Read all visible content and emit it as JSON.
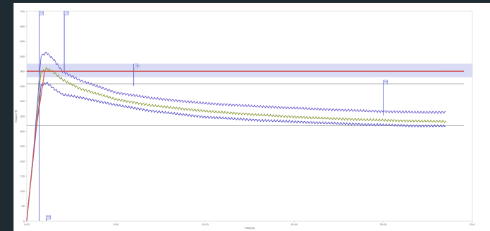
{
  "chart_data": {
    "type": "line",
    "xlabel": "Time(hr)",
    "ylabel": "Tempe(°F)",
    "xlim": [
      0,
      25
    ],
    "ylim": [
      0,
      700
    ],
    "x_ticks": [
      "0:00",
      "5:00",
      "10:00",
      "15:00",
      "20:00",
      "25:0"
    ],
    "y_ticks": [
      "0",
      "50",
      "100",
      "150",
      "200",
      "250",
      "300",
      "350",
      "400",
      "450",
      "500",
      "550",
      "600",
      "650",
      "700"
    ],
    "band": {
      "low": 480,
      "high": 525,
      "color": "#c9cdf0"
    },
    "reference_lines": [
      {
        "value": 500,
        "color": "#d23a3a"
      },
      {
        "value": 458,
        "color": "#9a9a9a"
      },
      {
        "value": 318,
        "color": "#9a9a9a"
      }
    ],
    "event_markers": [
      {
        "x": 0.7,
        "label": "T1"
      },
      {
        "x": 2.1,
        "label": "T2"
      },
      {
        "x": 6.0,
        "label": "MID"
      },
      {
        "x": 20.0,
        "label": "T3"
      },
      {
        "x": 1.1,
        "label": "T0"
      }
    ],
    "series": [
      {
        "color": "#6b5fd1",
        "x": [
          0,
          0.4,
          0.8,
          1.1,
          1.5,
          2,
          3,
          5,
          7,
          10,
          13,
          16,
          19,
          22,
          23.5
        ],
        "values": [
          5,
          250,
          550,
          565,
          540,
          500,
          470,
          430,
          412,
          395,
          385,
          377,
          370,
          365,
          365
        ]
      },
      {
        "color": "#8a9a3a",
        "x": [
          0,
          0.4,
          0.8,
          1.1,
          1.5,
          2,
          3,
          5,
          7,
          10,
          13,
          16,
          19,
          22,
          23.5
        ],
        "values": [
          5,
          240,
          500,
          510,
          495,
          470,
          440,
          405,
          385,
          367,
          355,
          346,
          340,
          336,
          335
        ]
      },
      {
        "color": "#5a52c8",
        "x": [
          0,
          0.4,
          0.8,
          1.1,
          1.5,
          2,
          3,
          5,
          7,
          10,
          13,
          16,
          19,
          22,
          23.5
        ],
        "values": [
          5,
          230,
          455,
          460,
          440,
          420,
          410,
          385,
          365,
          345,
          335,
          328,
          322,
          318,
          318
        ]
      },
      {
        "color": "#d05454",
        "x": [
          0,
          0.5,
          1.0,
          23.5
        ],
        "values": [
          0,
          300,
          500,
          500
        ]
      }
    ]
  }
}
